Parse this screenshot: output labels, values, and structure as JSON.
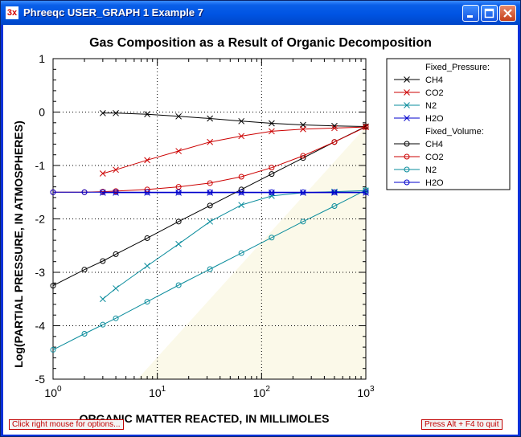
{
  "window": {
    "title": "Phreeqc USER_GRAPH 1 Example 7",
    "icon_text": "3x",
    "controls": [
      "minimize-icon",
      "maximize-icon",
      "close-icon"
    ]
  },
  "status": {
    "left": "Click right mouse for options...",
    "right": "Press Alt + F4 to quit"
  },
  "colors": {
    "black": "#000000",
    "red": "#cc0000",
    "cyan": "#0a8c9c",
    "blue": "#0000cc",
    "shade": "#fbf9e9"
  },
  "chart_data": {
    "type": "line",
    "title": "Gas Composition as a Result of Organic Decomposition",
    "xlabel": "ORGANIC MATTER REACTED, IN MILLIMOLES",
    "ylabel": "Log(PARTIAL PRESSURE, IN ATMOSPHERES)",
    "xscale": "log",
    "xlim": [
      1,
      1000
    ],
    "ylim": [
      -5,
      1
    ],
    "xticks": [
      {
        "base": "10",
        "exp": "0"
      },
      {
        "base": "10",
        "exp": "1"
      },
      {
        "base": "10",
        "exp": "2"
      },
      {
        "base": "10",
        "exp": "3"
      }
    ],
    "yticks": [
      "1",
      "0",
      "-1",
      "-2",
      "-3",
      "-4",
      "-5"
    ],
    "grid": true,
    "legend_position": "right",
    "legend_groups": [
      {
        "name": "Fixed_Pressure:",
        "marker": "x",
        "series": [
          {
            "name": "CH4",
            "color": "#000000",
            "x": [
              3,
              4,
              8,
              16,
              32,
              64,
              125,
              250,
              500,
              1000
            ],
            "y": [
              -0.02,
              -0.02,
              -0.04,
              -0.08,
              -0.12,
              -0.17,
              -0.21,
              -0.24,
              -0.26,
              -0.27
            ]
          },
          {
            "name": "CO2",
            "color": "#cc0000",
            "x": [
              3,
              4,
              8,
              16,
              32,
              64,
              125,
              250,
              500,
              1000
            ],
            "y": [
              -1.15,
              -1.08,
              -0.9,
              -0.73,
              -0.56,
              -0.45,
              -0.36,
              -0.32,
              -0.3,
              -0.28
            ]
          },
          {
            "name": "N2",
            "color": "#0a8c9c",
            "x": [
              3,
              4,
              8,
              16,
              32,
              64,
              125,
              250,
              500,
              1000
            ],
            "y": [
              -3.5,
              -3.3,
              -2.88,
              -2.47,
              -2.05,
              -1.74,
              -1.57,
              -1.51,
              -1.49,
              -1.47
            ]
          },
          {
            "name": "H2O",
            "color": "#0000cc",
            "x": [
              3,
              4,
              8,
              16,
              32,
              64,
              125,
              250,
              500,
              1000
            ],
            "y": [
              -1.51,
              -1.51,
              -1.51,
              -1.51,
              -1.51,
              -1.51,
              -1.51,
              -1.51,
              -1.51,
              -1.51
            ]
          }
        ]
      },
      {
        "name": "Fixed_Volume:",
        "marker": "o",
        "series": [
          {
            "name": "CH4",
            "color": "#000000",
            "x": [
              1,
              2,
              3,
              4,
              8,
              16,
              32,
              64,
              125,
              250,
              500,
              1000
            ],
            "y": [
              -3.25,
              -2.95,
              -2.79,
              -2.66,
              -2.36,
              -2.05,
              -1.75,
              -1.45,
              -1.16,
              -0.86,
              -0.56,
              -0.27
            ]
          },
          {
            "name": "CO2",
            "color": "#cc0000",
            "x": [
              1,
              2,
              3,
              4,
              8,
              16,
              32,
              64,
              125,
              250,
              500,
              1000
            ],
            "y": [
              -1.5,
              -1.5,
              -1.49,
              -1.48,
              -1.45,
              -1.4,
              -1.33,
              -1.21,
              -1.04,
              -0.82,
              -0.56,
              -0.28
            ]
          },
          {
            "name": "N2",
            "color": "#0a8c9c",
            "x": [
              1,
              2,
              3,
              4,
              8,
              16,
              32,
              64,
              125,
              250,
              500,
              1000
            ],
            "y": [
              -4.45,
              -4.15,
              -3.98,
              -3.86,
              -3.55,
              -3.24,
              -2.94,
              -2.64,
              -2.35,
              -2.05,
              -1.76,
              -1.46
            ]
          },
          {
            "name": "H2O",
            "color": "#0000cc",
            "x": [
              1,
              2,
              3,
              4,
              8,
              16,
              32,
              64,
              125,
              250,
              500,
              1000
            ],
            "y": [
              -1.5,
              -1.5,
              -1.5,
              -1.5,
              -1.5,
              -1.5,
              -1.5,
              -1.5,
              -1.5,
              -1.5,
              -1.5,
              -1.5
            ]
          }
        ]
      }
    ]
  }
}
